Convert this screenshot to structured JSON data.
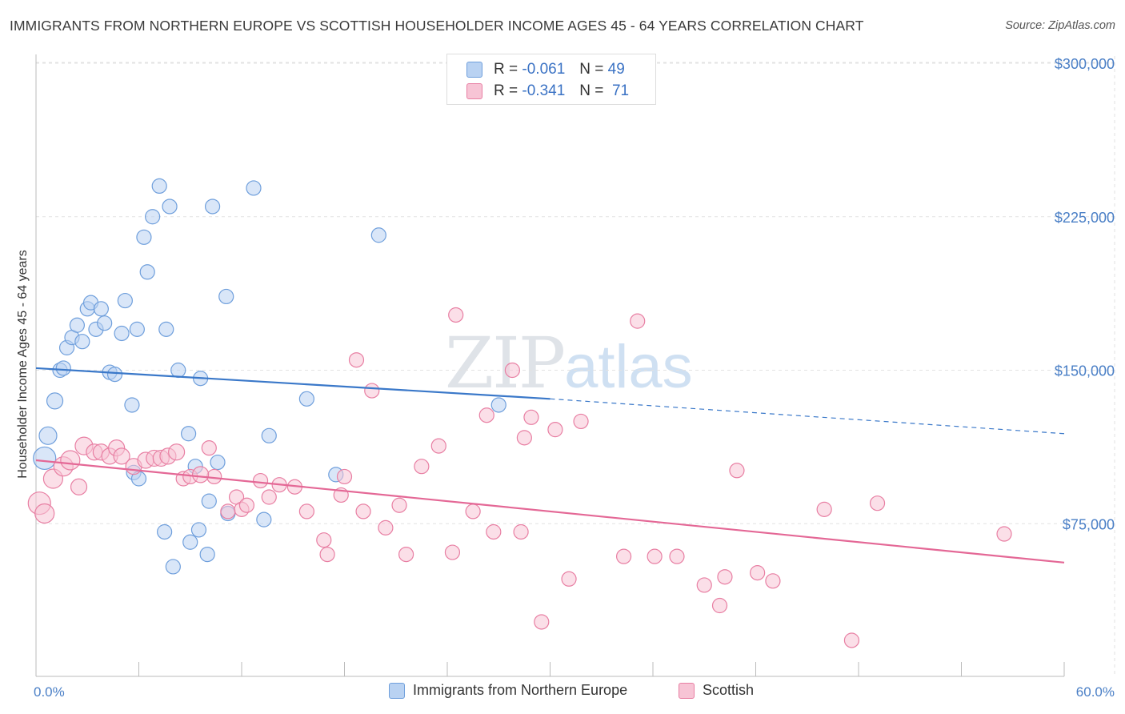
{
  "title": "IMMIGRANTS FROM NORTHERN EUROPE VS SCOTTISH HOUSEHOLDER INCOME AGES 45 - 64 YEARS CORRELATION CHART",
  "source": "Source: ZipAtlas.com",
  "watermark": {
    "zip": "ZIP",
    "atlas": "atlas"
  },
  "legend_stats": [
    {
      "r_label": "R = ",
      "r_value": "-0.061",
      "n_label": "N = ",
      "n_value": "49"
    },
    {
      "r_label": "R = ",
      "r_value": "-0.341",
      "n_label": "N = ",
      "n_value": "71"
    }
  ],
  "chart_data": {
    "type": "scatter",
    "title": "IMMIGRANTS FROM NORTHERN EUROPE VS SCOTTISH HOUSEHOLDER INCOME AGES 45 - 64 YEARS CORRELATION CHART",
    "xlabel": "",
    "ylabel": "Householder Income Ages 45 - 64 years",
    "xlim": [
      0,
      60
    ],
    "ylim": [
      0,
      305000
    ],
    "x_tick_labels": [
      "0.0%",
      "60.0%"
    ],
    "y_ticks": [
      75000,
      150000,
      225000,
      300000
    ],
    "y_tick_labels": [
      "$75,000",
      "$150,000",
      "$225,000",
      "$300,000"
    ],
    "grid": true,
    "legend_position": "bottom",
    "colors": {
      "blue": "#6f9fdc",
      "blue_fill": "#b9d2f2",
      "pink": "#e87fa3",
      "pink_fill": "#f7c4d5",
      "blue_line": "#3a78c9",
      "pink_line": "#e46896"
    },
    "series": [
      {
        "name": "Immigrants from Northern Europe",
        "color": "blue",
        "points": [
          [
            0.5,
            107000,
            14
          ],
          [
            0.7,
            118000,
            11
          ],
          [
            1.1,
            135000,
            10
          ],
          [
            1.4,
            150000,
            9
          ],
          [
            1.6,
            151000,
            9
          ],
          [
            1.8,
            161000,
            9
          ],
          [
            2.1,
            166000,
            9
          ],
          [
            2.4,
            172000,
            9
          ],
          [
            2.7,
            164000,
            9
          ],
          [
            3.0,
            180000,
            9
          ],
          [
            3.2,
            183000,
            9
          ],
          [
            3.5,
            170000,
            9
          ],
          [
            3.8,
            180000,
            9
          ],
          [
            4.0,
            173000,
            9
          ],
          [
            4.3,
            149000,
            9
          ],
          [
            4.6,
            148000,
            9
          ],
          [
            5.0,
            168000,
            9
          ],
          [
            5.2,
            184000,
            9
          ],
          [
            5.6,
            133000,
            9
          ],
          [
            5.9,
            170000,
            9
          ],
          [
            6.3,
            215000,
            9
          ],
          [
            6.5,
            198000,
            9
          ],
          [
            6.8,
            225000,
            9
          ],
          [
            7.2,
            240000,
            9
          ],
          [
            7.6,
            170000,
            9
          ],
          [
            7.8,
            230000,
            9
          ],
          [
            8.3,
            150000,
            9
          ],
          [
            8.9,
            119000,
            9
          ],
          [
            9.3,
            103000,
            9
          ],
          [
            9.6,
            146000,
            9
          ],
          [
            10.3,
            230000,
            9
          ],
          [
            10.6,
            105000,
            9
          ],
          [
            11.1,
            186000,
            9
          ],
          [
            12.7,
            239000,
            9
          ],
          [
            11.2,
            80000,
            9
          ],
          [
            10.1,
            86000,
            9
          ],
          [
            9.5,
            72000,
            9
          ],
          [
            8.0,
            54000,
            9
          ],
          [
            7.5,
            71000,
            9
          ],
          [
            9.0,
            66000,
            9
          ],
          [
            10.0,
            60000,
            9
          ],
          [
            13.3,
            77000,
            9
          ],
          [
            13.6,
            118000,
            9
          ],
          [
            15.8,
            136000,
            9
          ],
          [
            17.5,
            99000,
            9
          ],
          [
            20.0,
            216000,
            9
          ],
          [
            27.0,
            133000,
            9
          ],
          [
            5.7,
            100000,
            9
          ],
          [
            6.0,
            97000,
            9
          ]
        ]
      },
      {
        "name": "Scottish",
        "color": "pink",
        "points": [
          [
            0.2,
            85000,
            14
          ],
          [
            0.5,
            80000,
            12
          ],
          [
            1.0,
            97000,
            12
          ],
          [
            1.6,
            103000,
            12
          ],
          [
            2.0,
            106000,
            12
          ],
          [
            2.8,
            113000,
            11
          ],
          [
            3.4,
            110000,
            10
          ],
          [
            3.8,
            110000,
            10
          ],
          [
            4.3,
            108000,
            10
          ],
          [
            4.7,
            112000,
            10
          ],
          [
            5.0,
            108000,
            10
          ],
          [
            5.7,
            103000,
            10
          ],
          [
            6.4,
            106000,
            10
          ],
          [
            6.9,
            107000,
            10
          ],
          [
            7.3,
            107000,
            10
          ],
          [
            7.7,
            108000,
            10
          ],
          [
            8.2,
            110000,
            10
          ],
          [
            8.6,
            97000,
            9
          ],
          [
            9.0,
            98000,
            9
          ],
          [
            10.1,
            112000,
            9
          ],
          [
            10.4,
            98000,
            9
          ],
          [
            11.2,
            81000,
            9
          ],
          [
            11.7,
            88000,
            9
          ],
          [
            12.0,
            82000,
            9
          ],
          [
            12.3,
            84000,
            9
          ],
          [
            13.1,
            96000,
            9
          ],
          [
            13.6,
            88000,
            9
          ],
          [
            14.2,
            94000,
            9
          ],
          [
            15.1,
            93000,
            9
          ],
          [
            15.8,
            81000,
            9
          ],
          [
            16.8,
            67000,
            9
          ],
          [
            17.0,
            60000,
            9
          ],
          [
            17.8,
            89000,
            9
          ],
          [
            18.0,
            98000,
            9
          ],
          [
            18.7,
            155000,
            9
          ],
          [
            19.1,
            81000,
            9
          ],
          [
            19.6,
            140000,
            9
          ],
          [
            20.4,
            73000,
            9
          ],
          [
            21.2,
            84000,
            9
          ],
          [
            21.6,
            60000,
            9
          ],
          [
            22.5,
            103000,
            9
          ],
          [
            23.5,
            113000,
            9
          ],
          [
            24.3,
            61000,
            9
          ],
          [
            24.5,
            177000,
            9
          ],
          [
            25.5,
            81000,
            9
          ],
          [
            26.3,
            128000,
            9
          ],
          [
            26.7,
            71000,
            9
          ],
          [
            27.8,
            150000,
            9
          ],
          [
            28.3,
            71000,
            9
          ],
          [
            28.5,
            117000,
            9
          ],
          [
            28.9,
            127000,
            9
          ],
          [
            29.5,
            27000,
            9
          ],
          [
            30.3,
            121000,
            9
          ],
          [
            31.1,
            48000,
            9
          ],
          [
            31.8,
            125000,
            9
          ],
          [
            34.3,
            59000,
            9
          ],
          [
            35.1,
            174000,
            9
          ],
          [
            36.1,
            59000,
            9
          ],
          [
            37.4,
            59000,
            9
          ],
          [
            39.0,
            45000,
            9
          ],
          [
            39.9,
            35000,
            9
          ],
          [
            40.2,
            49000,
            9
          ],
          [
            40.9,
            101000,
            9
          ],
          [
            42.1,
            51000,
            9
          ],
          [
            43.0,
            47000,
            9
          ],
          [
            46.0,
            82000,
            9
          ],
          [
            47.6,
            18000,
            9
          ],
          [
            49.1,
            85000,
            9
          ],
          [
            56.5,
            70000,
            9
          ],
          [
            2.5,
            93000,
            10
          ],
          [
            9.6,
            99000,
            10
          ]
        ]
      }
    ],
    "trend_lines": [
      {
        "series": "Immigrants from Northern Europe",
        "x_solid": [
          0,
          30
        ],
        "y_solid": [
          151000,
          136000
        ],
        "x_dashed": [
          30,
          60
        ],
        "y_dashed": [
          136000,
          119000
        ]
      },
      {
        "series": "Scottish",
        "x": [
          0,
          60
        ],
        "y": [
          106000,
          56000
        ]
      }
    ]
  },
  "legend_bottom": [
    {
      "label": "Immigrants from Northern Europe"
    },
    {
      "label": "Scottish"
    }
  ]
}
